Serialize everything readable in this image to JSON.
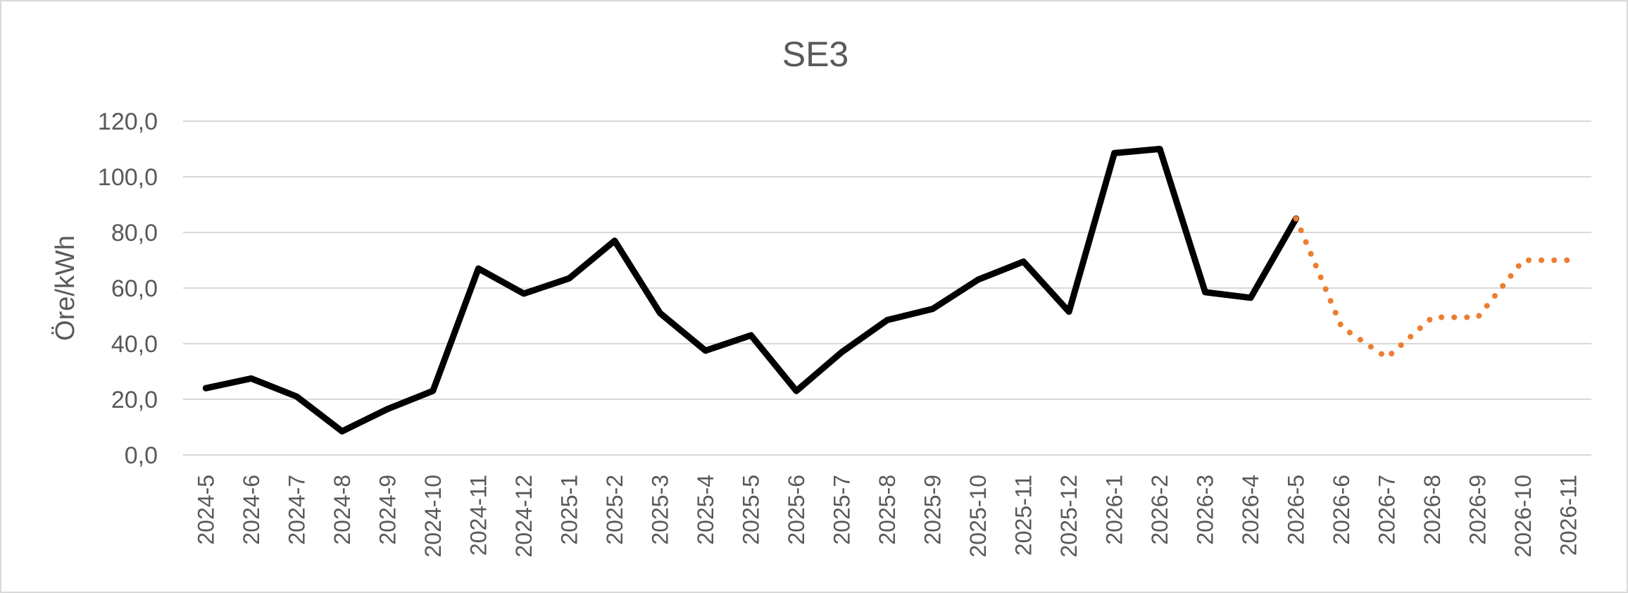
{
  "chart_data": {
    "type": "line",
    "title": "SE3",
    "xlabel": "",
    "ylabel": "Öre/kWh",
    "ylim": [
      0,
      120
    ],
    "yticks": [
      "0,0",
      "20,0",
      "40,0",
      "60,0",
      "80,0",
      "100,0",
      "120,0"
    ],
    "categories": [
      "2024-5",
      "2024-6",
      "2024-7",
      "2024-8",
      "2024-9",
      "2024-10",
      "2024-11",
      "2024-12",
      "2025-1",
      "2025-2",
      "2025-3",
      "2025-4",
      "2025-5",
      "2025-6",
      "2025-7",
      "2025-8",
      "2025-9",
      "2025-10",
      "2025-11",
      "2025-12",
      "2026-1",
      "2026-2",
      "2026-3",
      "2026-4",
      "2026-5",
      "2026-6",
      "2026-7",
      "2026-8",
      "2026-9",
      "2026-10",
      "2026-11"
    ],
    "grid": true,
    "legend": "none",
    "series": [
      {
        "style": "solid",
        "color": "#000000",
        "values": [
          24,
          27.5,
          21,
          8.5,
          16.5,
          23,
          67,
          58,
          63.5,
          77,
          51,
          37.5,
          43,
          23,
          37,
          48.5,
          52.5,
          63,
          69.5,
          51.5,
          108.5,
          110,
          58.5,
          56.5,
          85,
          null,
          null,
          null,
          null,
          null,
          null
        ]
      },
      {
        "style": "dotted",
        "color": "#ed7d31",
        "values": [
          null,
          null,
          null,
          null,
          null,
          null,
          null,
          null,
          null,
          null,
          null,
          null,
          null,
          null,
          null,
          null,
          null,
          null,
          null,
          null,
          null,
          null,
          null,
          null,
          85,
          46,
          35,
          49.5,
          49.5,
          70,
          70
        ]
      }
    ]
  }
}
